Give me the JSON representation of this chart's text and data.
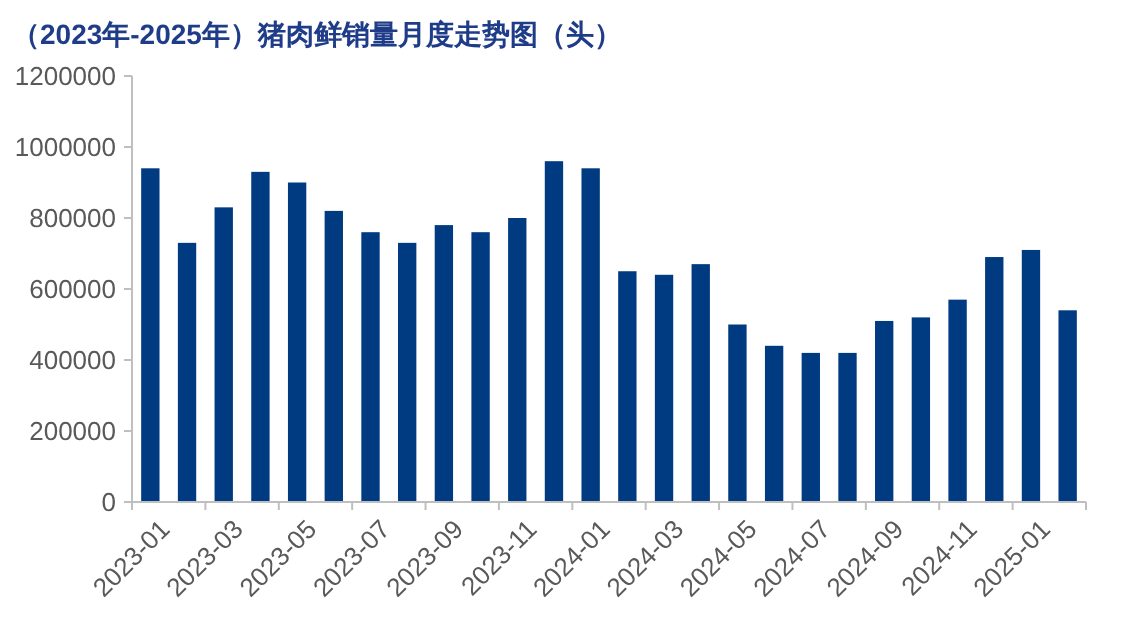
{
  "chart_data": {
    "type": "bar",
    "title": "（2023年-2025年）猪肉鲜销量月度走势图（头）",
    "categories": [
      "2023-01",
      null,
      "2023-03",
      null,
      "2023-05",
      null,
      "2023-07",
      null,
      "2023-09",
      null,
      "2023-11",
      null,
      "2024-01",
      null,
      "2024-03",
      null,
      "2024-05",
      null,
      "2024-07",
      null,
      "2024-09",
      null,
      "2024-11",
      null,
      "2025-01",
      null
    ],
    "values": [
      940000,
      730000,
      830000,
      930000,
      900000,
      820000,
      760000,
      730000,
      780000,
      760000,
      800000,
      960000,
      940000,
      650000,
      640000,
      670000,
      500000,
      440000,
      420000,
      420000,
      510000,
      520000,
      570000,
      690000,
      710000,
      540000
    ],
    "color": "#003a80",
    "ylim": [
      0,
      1200000
    ],
    "yticks": [
      0,
      200000,
      400000,
      600000,
      800000,
      1000000,
      1200000
    ],
    "grid": false
  }
}
